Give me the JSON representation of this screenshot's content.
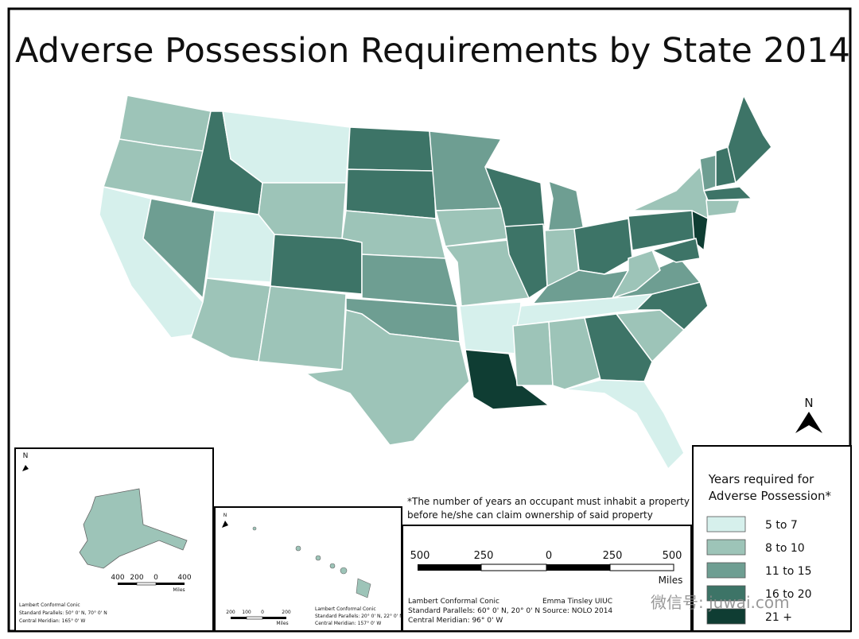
{
  "title": "Adverse Possession Requirements by State 2014",
  "compass": "N",
  "legend": {
    "title_lines": [
      "Years required for",
      "Adverse Possession*"
    ],
    "items": [
      {
        "label": "5 to 7",
        "color": "#d6f0ec"
      },
      {
        "label": "8 to 10",
        "color": "#9dc4b8"
      },
      {
        "label": "11 to 15",
        "color": "#6e9e92"
      },
      {
        "label": "16 to 20",
        "color": "#3d7467"
      },
      {
        "label": "21 +",
        "color": "#0f3d33"
      }
    ]
  },
  "note_lines": [
    "*The number of years an occupant must inhabit a property",
    "before he/she can claim ownership of said property"
  ],
  "scale_bar": {
    "labels": [
      "500",
      "250",
      "0",
      "250",
      "500"
    ],
    "unit": "Miles"
  },
  "projection": [
    "Lambert Conformal Conic",
    "Standard Parallels: 60° 0' N, 20° 0' N",
    "Central Meridian: 96° 0' W"
  ],
  "credit": [
    "Emma Tinsley UIUC",
    "Source: NOLO 2014"
  ],
  "alaska_inset": {
    "compass": "N",
    "scale_labels": [
      "400",
      "200",
      "0",
      "400"
    ],
    "unit": "Miles",
    "projection": [
      "Lambert Conformal Conic",
      "Standard Parallels: 50° 0' N, 70° 0' N",
      "Central Meridian: 165° 0' W"
    ]
  },
  "hawaii_inset": {
    "compass": "N",
    "scale_labels": [
      "200",
      "100",
      "0",
      "200"
    ],
    "unit": "Miles",
    "projection": [
      "Lambert Conformal Conic",
      "Standard Parallels: 20° 0' N, 22° 0' N",
      "Central Meridian: 157° 0' W"
    ]
  },
  "watermark": "微信号: juwai.com"
}
